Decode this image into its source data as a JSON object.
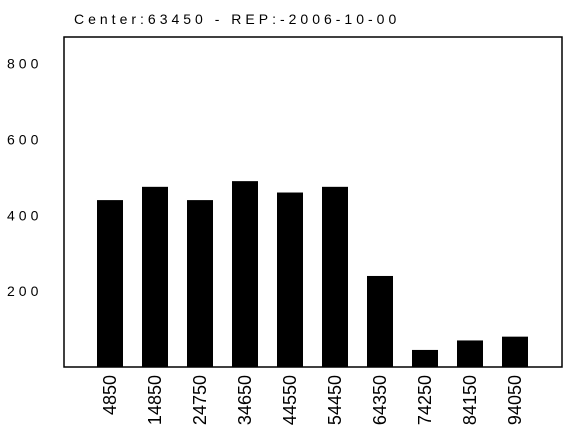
{
  "chart_data": {
    "type": "bar",
    "title": "Center:63450 - REP:-2006-10-00",
    "xlabel": "",
    "ylabel": "",
    "categories": [
      "4850",
      "14850",
      "24750",
      "34650",
      "44550",
      "54450",
      "64350",
      "74250",
      "84150",
      "94050"
    ],
    "values": [
      440,
      475,
      440,
      490,
      460,
      475,
      240,
      45,
      70,
      80
    ],
    "ylim": [
      0,
      870
    ],
    "yticks": [
      200,
      400,
      600,
      800
    ],
    "ytick_labels": [
      "200",
      "400",
      "600",
      "800"
    ],
    "grid": false,
    "bar_color": "#000000"
  }
}
